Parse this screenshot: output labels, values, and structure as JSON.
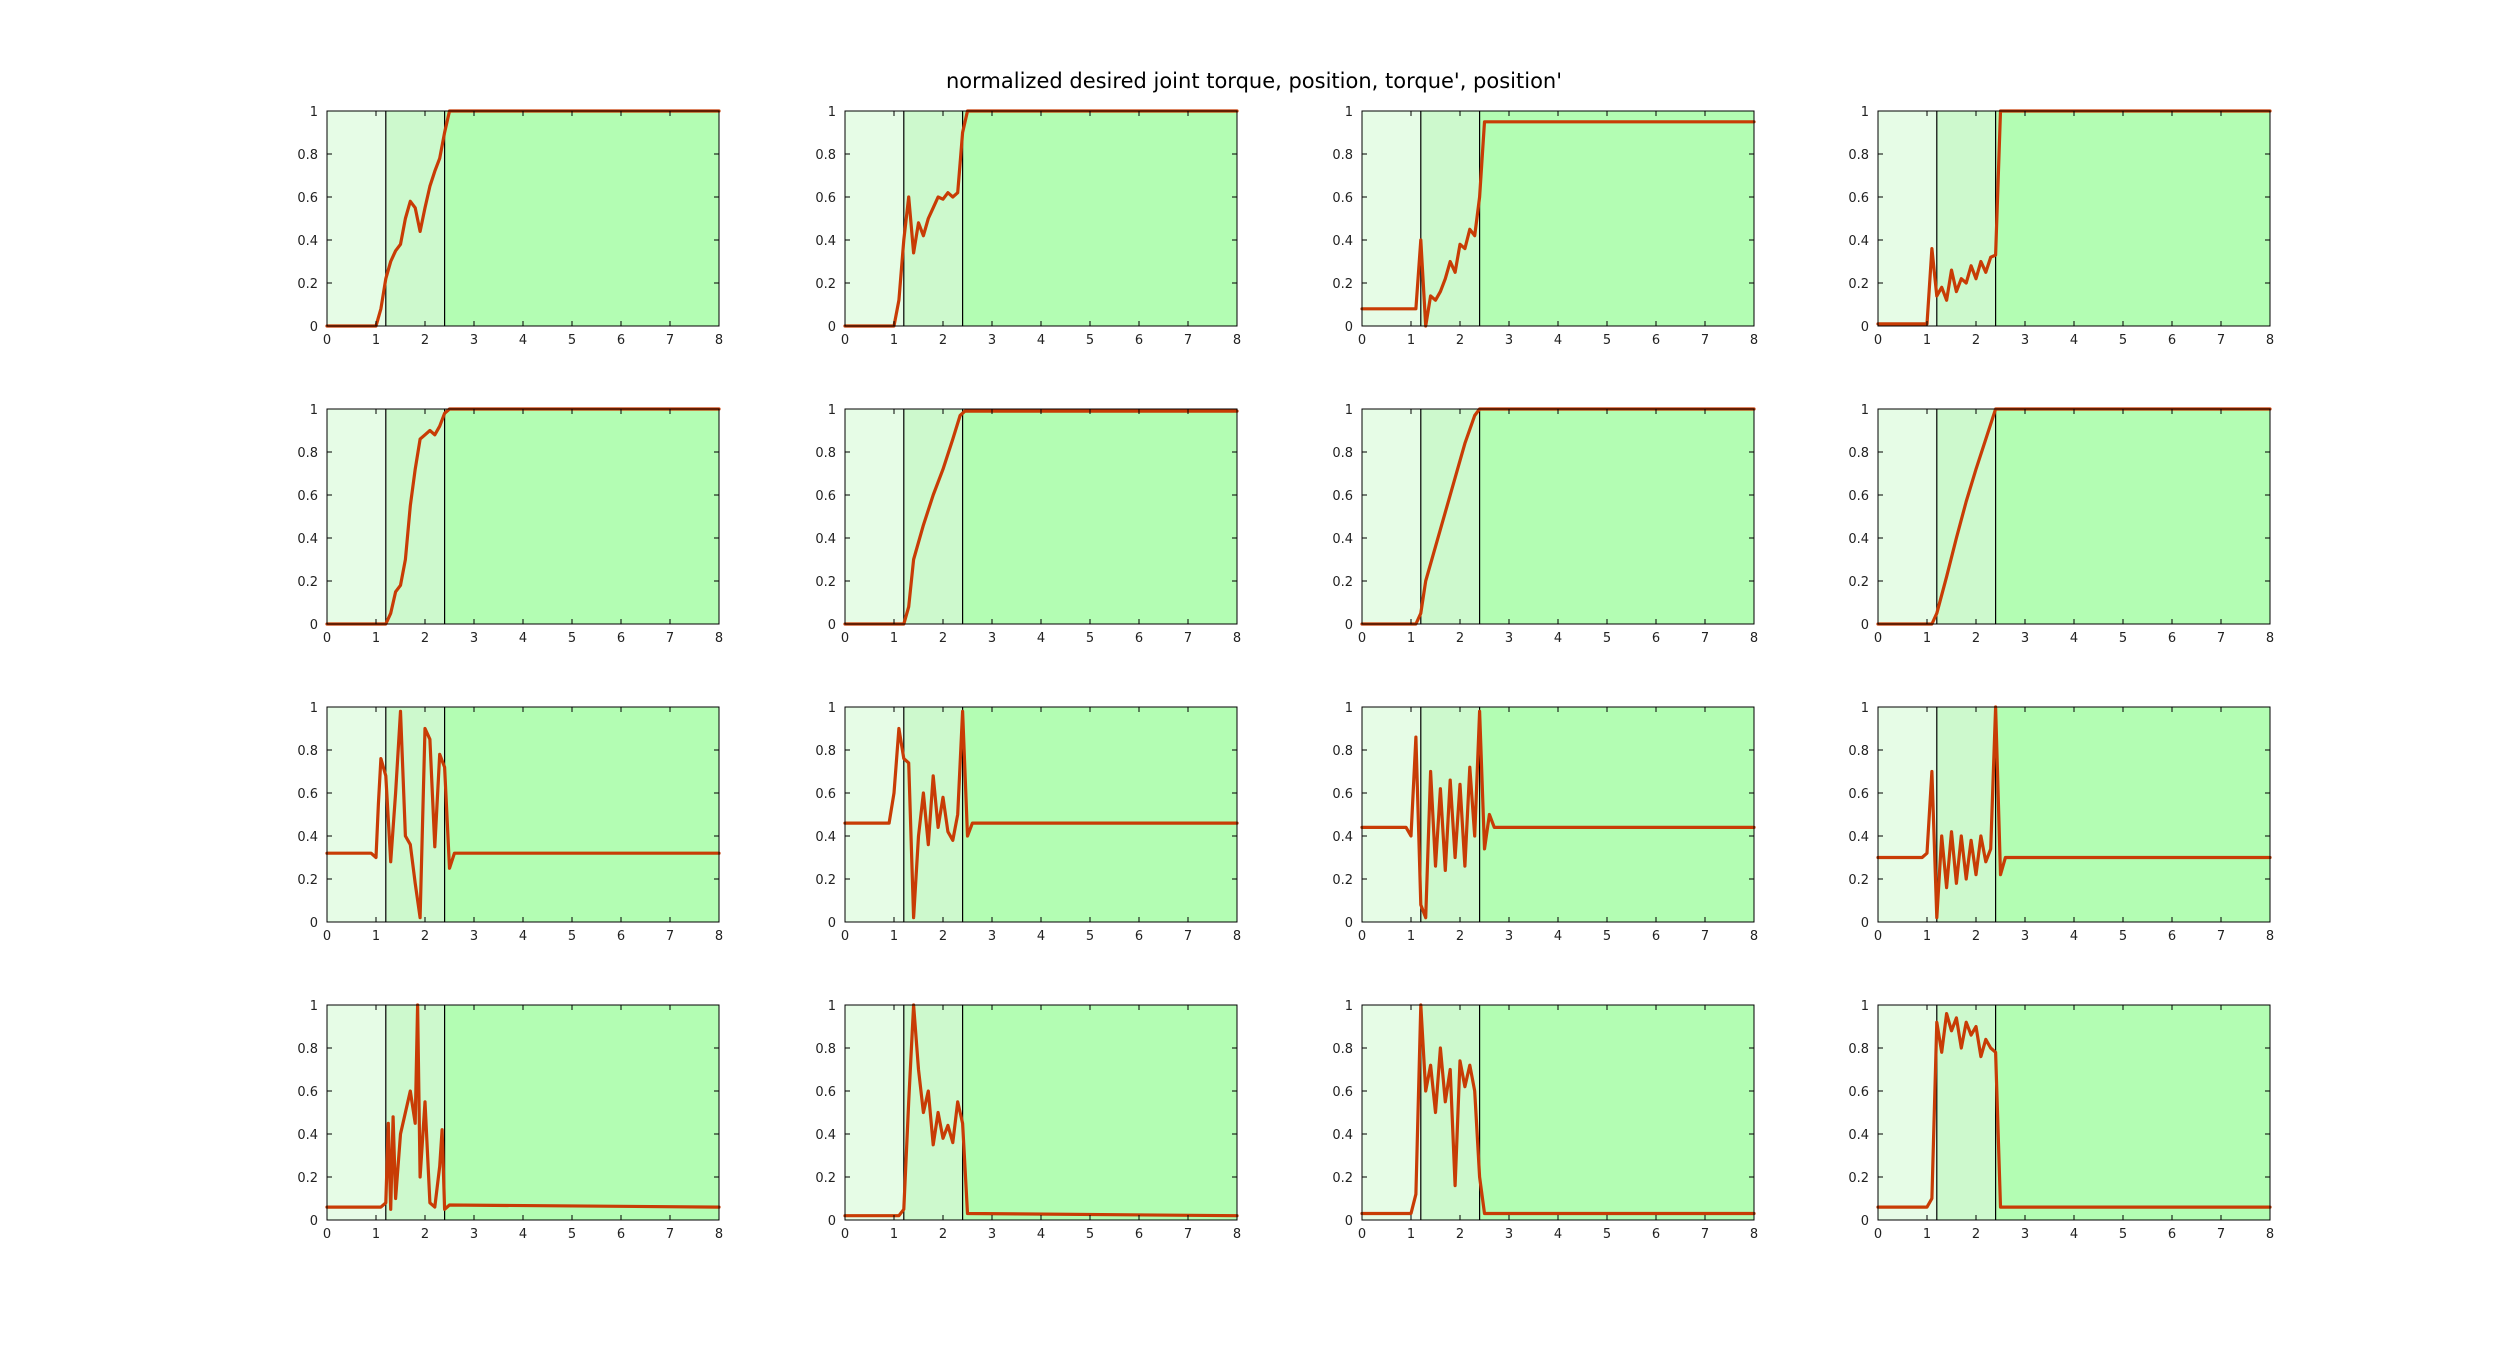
{
  "figure": {
    "title": "normalized desired joint torque, position, torque', position'"
  },
  "colors": {
    "background": "#ffffff",
    "phase_1": "#e6fce6",
    "phase_2": "#cdf9cd",
    "phase_3": "#b3fdb3",
    "line": "#c83c05",
    "phase_divider": "#000000",
    "axes": "#000000"
  },
  "chart_data": {
    "type": "line",
    "layout": "4 rows x 4 columns grid of line subplots; rows are torque, position, torque', position' and columns are four joints",
    "shared_axes": {
      "xlim": [
        0,
        8
      ],
      "ylim": [
        0,
        1
      ],
      "xticks": [
        "0",
        "1",
        "2",
        "3",
        "4",
        "5",
        "6",
        "7",
        "8"
      ],
      "yticks": [
        "0",
        "0.2",
        "0.4",
        "0.6",
        "0.8",
        "1"
      ],
      "grid": false,
      "legend": "none"
    },
    "phases": [
      {
        "x_start": 0,
        "x_end": 1.2,
        "color": "#e6fce6"
      },
      {
        "x_start": 1.2,
        "x_end": 2.4,
        "color": "#cdf9cd"
      },
      {
        "x_start": 2.4,
        "x_end": 8,
        "color": "#b3fdb3"
      }
    ],
    "phase_boundaries_x": [
      1.2,
      2.4
    ],
    "subplots": [
      {
        "row": 1,
        "col": 1,
        "x": [
          0,
          1.0,
          1.1,
          1.2,
          1.3,
          1.4,
          1.5,
          1.6,
          1.7,
          1.8,
          1.9,
          2.0,
          2.1,
          2.2,
          2.3,
          2.4,
          2.5,
          8
        ],
        "y": [
          0,
          0,
          0.08,
          0.22,
          0.3,
          0.35,
          0.38,
          0.5,
          0.58,
          0.55,
          0.44,
          0.55,
          0.65,
          0.72,
          0.78,
          0.9,
          1.0,
          1.0
        ]
      },
      {
        "row": 1,
        "col": 2,
        "x": [
          0,
          1.0,
          1.1,
          1.2,
          1.3,
          1.4,
          1.5,
          1.6,
          1.7,
          1.8,
          1.9,
          2.0,
          2.1,
          2.2,
          2.3,
          2.4,
          2.5,
          8
        ],
        "y": [
          0,
          0,
          0.12,
          0.4,
          0.6,
          0.34,
          0.48,
          0.42,
          0.5,
          0.55,
          0.6,
          0.59,
          0.62,
          0.6,
          0.62,
          0.9,
          1.0,
          1.0
        ]
      },
      {
        "row": 1,
        "col": 3,
        "x": [
          0,
          1.0,
          1.1,
          1.2,
          1.3,
          1.4,
          1.5,
          1.6,
          1.7,
          1.8,
          1.9,
          2.0,
          2.1,
          2.2,
          2.3,
          2.4,
          2.5,
          8
        ],
        "y": [
          0.08,
          0.08,
          0.08,
          0.4,
          0.0,
          0.14,
          0.12,
          0.16,
          0.22,
          0.3,
          0.25,
          0.38,
          0.36,
          0.45,
          0.42,
          0.6,
          0.95,
          0.95
        ]
      },
      {
        "row": 1,
        "col": 4,
        "x": [
          0,
          1.0,
          1.1,
          1.2,
          1.3,
          1.4,
          1.5,
          1.6,
          1.7,
          1.8,
          1.9,
          2.0,
          2.1,
          2.2,
          2.3,
          2.4,
          2.5,
          8
        ],
        "y": [
          0.01,
          0.01,
          0.36,
          0.14,
          0.18,
          0.12,
          0.26,
          0.16,
          0.22,
          0.2,
          0.28,
          0.22,
          0.3,
          0.25,
          0.32,
          0.33,
          1.0,
          1.0
        ]
      },
      {
        "row": 2,
        "col": 1,
        "x": [
          0,
          1.2,
          1.3,
          1.4,
          1.5,
          1.6,
          1.7,
          1.8,
          1.9,
          2.0,
          2.1,
          2.2,
          2.3,
          2.4,
          2.5,
          8
        ],
        "y": [
          0,
          0,
          0.05,
          0.15,
          0.18,
          0.3,
          0.55,
          0.72,
          0.86,
          0.88,
          0.9,
          0.88,
          0.92,
          0.98,
          1.0,
          1.0
        ]
      },
      {
        "row": 2,
        "col": 2,
        "x": [
          0,
          1.2,
          1.3,
          1.4,
          1.6,
          1.8,
          2.0,
          2.2,
          2.35,
          2.45,
          8
        ],
        "y": [
          0,
          0,
          0.08,
          0.3,
          0.46,
          0.6,
          0.72,
          0.86,
          0.97,
          0.99,
          0.99
        ]
      },
      {
        "row": 2,
        "col": 3,
        "x": [
          0,
          1.1,
          1.2,
          1.3,
          1.5,
          1.7,
          1.9,
          2.1,
          2.3,
          2.4,
          8
        ],
        "y": [
          0,
          0,
          0.05,
          0.2,
          0.36,
          0.52,
          0.68,
          0.84,
          0.97,
          1.0,
          1.0
        ]
      },
      {
        "row": 2,
        "col": 4,
        "x": [
          0,
          1.1,
          1.2,
          1.4,
          1.6,
          1.8,
          2.0,
          2.2,
          2.4,
          8
        ],
        "y": [
          0,
          0,
          0.05,
          0.22,
          0.4,
          0.57,
          0.72,
          0.86,
          1.0,
          1.0
        ]
      },
      {
        "row": 3,
        "col": 1,
        "x": [
          0,
          0.9,
          1.0,
          1.05,
          1.1,
          1.2,
          1.3,
          1.4,
          1.5,
          1.6,
          1.7,
          1.8,
          1.9,
          2.0,
          2.1,
          2.2,
          2.3,
          2.4,
          2.5,
          2.6,
          2.7,
          8
        ],
        "y": [
          0.32,
          0.32,
          0.3,
          0.55,
          0.76,
          0.68,
          0.28,
          0.6,
          0.98,
          0.4,
          0.36,
          0.18,
          0.02,
          0.9,
          0.85,
          0.35,
          0.78,
          0.72,
          0.25,
          0.32,
          0.32,
          0.32
        ]
      },
      {
        "row": 3,
        "col": 2,
        "x": [
          0,
          0.9,
          1.0,
          1.1,
          1.2,
          1.3,
          1.4,
          1.5,
          1.6,
          1.7,
          1.8,
          1.9,
          2.0,
          2.1,
          2.2,
          2.3,
          2.4,
          2.5,
          2.6,
          2.7,
          8
        ],
        "y": [
          0.46,
          0.46,
          0.6,
          0.9,
          0.76,
          0.74,
          0.02,
          0.4,
          0.6,
          0.36,
          0.68,
          0.44,
          0.58,
          0.42,
          0.38,
          0.5,
          0.98,
          0.4,
          0.46,
          0.46,
          0.46
        ]
      },
      {
        "row": 3,
        "col": 3,
        "x": [
          0,
          0.9,
          1.0,
          1.1,
          1.2,
          1.3,
          1.4,
          1.5,
          1.6,
          1.7,
          1.8,
          1.9,
          2.0,
          2.1,
          2.2,
          2.3,
          2.4,
          2.5,
          2.6,
          2.7,
          8
        ],
        "y": [
          0.44,
          0.44,
          0.4,
          0.86,
          0.08,
          0.02,
          0.7,
          0.26,
          0.62,
          0.24,
          0.66,
          0.3,
          0.64,
          0.26,
          0.72,
          0.4,
          0.98,
          0.34,
          0.5,
          0.44,
          0.44
        ]
      },
      {
        "row": 3,
        "col": 4,
        "x": [
          0,
          0.9,
          1.0,
          1.1,
          1.2,
          1.3,
          1.4,
          1.5,
          1.6,
          1.7,
          1.8,
          1.9,
          2.0,
          2.1,
          2.2,
          2.3,
          2.4,
          2.5,
          2.6,
          2.7,
          8
        ],
        "y": [
          0.3,
          0.3,
          0.32,
          0.7,
          0.02,
          0.4,
          0.16,
          0.42,
          0.18,
          0.4,
          0.2,
          0.38,
          0.22,
          0.4,
          0.28,
          0.34,
          1.0,
          0.22,
          0.3,
          0.3,
          0.3
        ]
      },
      {
        "row": 4,
        "col": 1,
        "x": [
          0,
          1.1,
          1.2,
          1.25,
          1.3,
          1.35,
          1.4,
          1.5,
          1.6,
          1.7,
          1.8,
          1.85,
          1.9,
          2.0,
          2.1,
          2.2,
          2.3,
          2.35,
          2.4,
          2.5,
          8
        ],
        "y": [
          0.06,
          0.06,
          0.08,
          0.45,
          0.05,
          0.48,
          0.1,
          0.4,
          0.5,
          0.6,
          0.45,
          1.0,
          0.2,
          0.55,
          0.08,
          0.06,
          0.25,
          0.42,
          0.05,
          0.07,
          0.06
        ]
      },
      {
        "row": 4,
        "col": 2,
        "x": [
          0,
          1.1,
          1.2,
          1.3,
          1.4,
          1.5,
          1.6,
          1.7,
          1.8,
          1.9,
          2.0,
          2.1,
          2.2,
          2.3,
          2.4,
          2.5,
          8
        ],
        "y": [
          0.02,
          0.02,
          0.05,
          0.55,
          1.0,
          0.7,
          0.5,
          0.6,
          0.35,
          0.5,
          0.38,
          0.44,
          0.36,
          0.55,
          0.45,
          0.03,
          0.02
        ]
      },
      {
        "row": 4,
        "col": 3,
        "x": [
          0,
          1.0,
          1.1,
          1.2,
          1.3,
          1.4,
          1.5,
          1.6,
          1.7,
          1.8,
          1.9,
          2.0,
          2.1,
          2.2,
          2.3,
          2.4,
          2.5,
          8
        ],
        "y": [
          0.03,
          0.03,
          0.12,
          1.0,
          0.6,
          0.72,
          0.5,
          0.8,
          0.55,
          0.7,
          0.16,
          0.74,
          0.62,
          0.72,
          0.6,
          0.2,
          0.03,
          0.03
        ]
      },
      {
        "row": 4,
        "col": 4,
        "x": [
          0,
          1.0,
          1.1,
          1.2,
          1.3,
          1.4,
          1.5,
          1.6,
          1.7,
          1.8,
          1.9,
          2.0,
          2.1,
          2.2,
          2.3,
          2.4,
          2.5,
          8
        ],
        "y": [
          0.06,
          0.06,
          0.1,
          0.92,
          0.78,
          0.96,
          0.88,
          0.94,
          0.8,
          0.92,
          0.86,
          0.9,
          0.76,
          0.84,
          0.8,
          0.78,
          0.06,
          0.06
        ]
      }
    ]
  }
}
